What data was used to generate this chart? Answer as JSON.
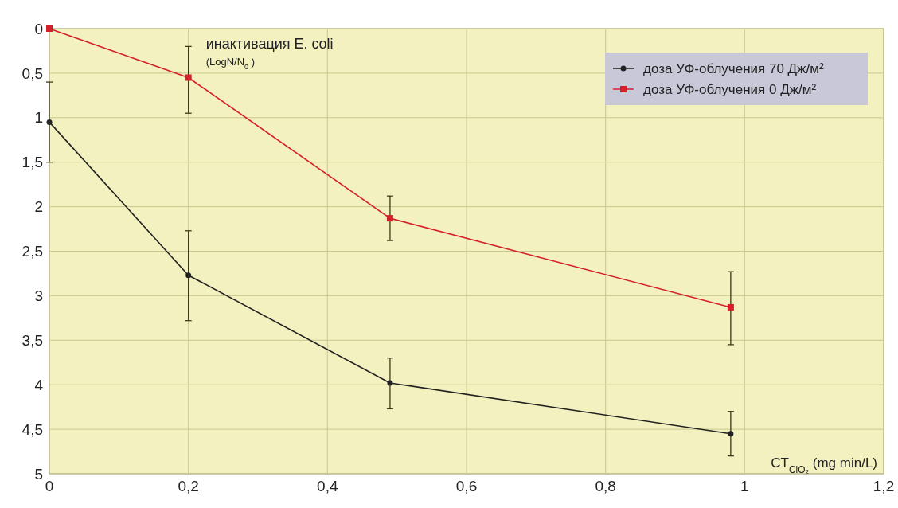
{
  "chart_data": {
    "type": "line",
    "xlabel": "CT$_{ClO₂}$ (mg min/L)",
    "ylabel": "инактивация E. coli (LogN/N$_{0}$)",
    "xlim": [
      0,
      1.2
    ],
    "xticks": [
      {
        "value": 0,
        "label": "0"
      },
      {
        "value": 0.2,
        "label": "0,2"
      },
      {
        "value": 0.4,
        "label": "0,4"
      },
      {
        "value": 0.6,
        "label": "0,6"
      },
      {
        "value": 0.8,
        "label": "0,8"
      },
      {
        "value": 1,
        "label": "1"
      },
      {
        "value": 1.2,
        "label": "1,2"
      }
    ],
    "ylim": [
      5,
      0
    ],
    "yticks": [
      {
        "value": 0,
        "label": "0"
      },
      {
        "value": 0.5,
        "label": "0,5"
      },
      {
        "value": 1,
        "label": "1"
      },
      {
        "value": 1.5,
        "label": "1,5"
      },
      {
        "value": 2,
        "label": "2"
      },
      {
        "value": 2.5,
        "label": "2,5"
      },
      {
        "value": 3,
        "label": "3"
      },
      {
        "value": 3.5,
        "label": "3,5"
      },
      {
        "value": 4,
        "label": "4"
      },
      {
        "value": 4.5,
        "label": "4,5"
      },
      {
        "value": 5,
        "label": "5"
      }
    ],
    "grid": true,
    "legend": "top right",
    "series": [
      {
        "name": "доза УФ-облучения 70 Дж/м²",
        "color": "#222222",
        "marker": "circle",
        "x": [
          0,
          0.2,
          0.49,
          0.98
        ],
        "values": [
          1.05,
          2.77,
          3.98,
          4.55
        ],
        "errors": [
          [
            0.6,
            1.5
          ],
          [
            2.27,
            3.28
          ],
          [
            3.7,
            4.27
          ],
          [
            4.3,
            4.8
          ]
        ]
      },
      {
        "name": "доза УФ-облучения 0 Дж/м²",
        "color": "#d4202a",
        "marker": "square",
        "x": [
          0,
          0.2,
          0.49,
          0.98
        ],
        "values": [
          0,
          0.55,
          2.13,
          3.13
        ],
        "errors": [
          null,
          [
            0.2,
            0.95
          ],
          [
            1.88,
            2.38
          ],
          [
            2.73,
            3.55
          ]
        ]
      }
    ]
  }
}
